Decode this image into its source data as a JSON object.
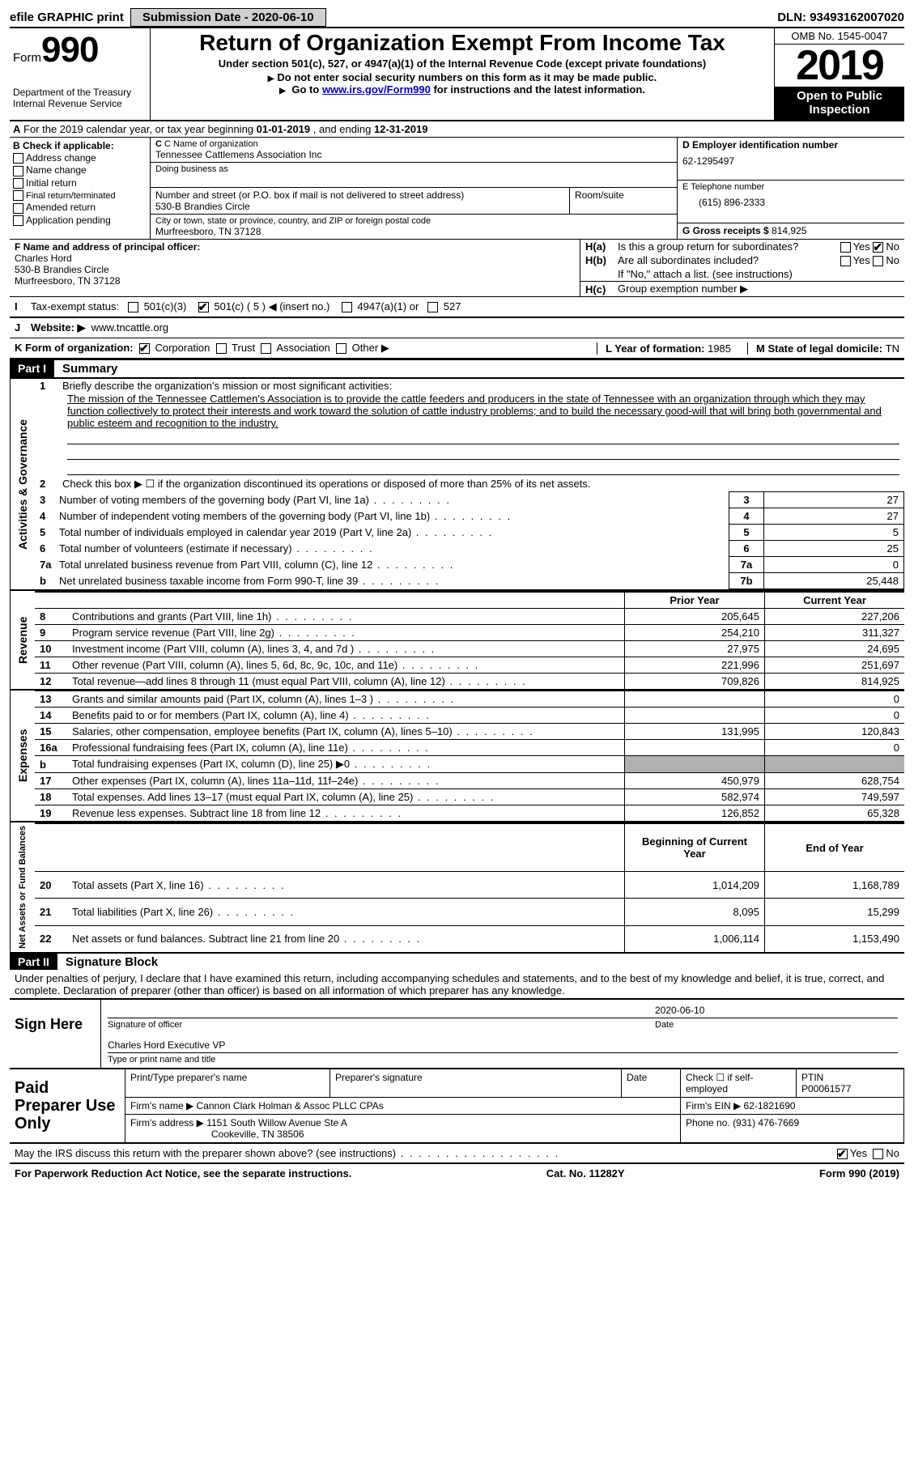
{
  "topbar": {
    "efile_label": "efile GRAPHIC print",
    "submission_label": "Submission Date - 2020-06-10",
    "dln": "DLN: 93493162007020"
  },
  "header": {
    "form_word": "Form",
    "form_number": "990",
    "dept1": "Department of the Treasury",
    "dept2": "Internal Revenue Service",
    "title": "Return of Organization Exempt From Income Tax",
    "subtitle": "Under section 501(c), 527, or 4947(a)(1) of the Internal Revenue Code (except private foundations)",
    "note1": "Do not enter social security numbers on this form as it may be made public.",
    "note2_pre": "Go to ",
    "note2_link": "www.irs.gov/Form990",
    "note2_post": " for instructions and the latest information.",
    "omb": "OMB No. 1545-0047",
    "year": "2019",
    "inspection": "Open to Public Inspection"
  },
  "line_a": {
    "text_pre": "For the 2019 calendar year, or tax year beginning ",
    "begin": "01-01-2019",
    "mid": " , and ending ",
    "end": "12-31-2019"
  },
  "section_b": {
    "header": "B Check if applicable:",
    "opts": [
      "Address change",
      "Name change",
      "Initial return",
      "Final return/terminated",
      "Amended return",
      "Application pending"
    ]
  },
  "section_c": {
    "name_label": "C Name of organization",
    "name": "Tennessee Cattlemens Association Inc",
    "dba_label": "Doing business as",
    "addr_label": "Number and street (or P.O. box if mail is not delivered to street address)",
    "addr": "530-B Brandies Circle",
    "room_label": "Room/suite",
    "city_label": "City or town, state or province, country, and ZIP or foreign postal code",
    "city": "Murfreesboro, TN  37128"
  },
  "section_d": {
    "label": "D Employer identification number",
    "ein": "62-1295497",
    "phone_label": "E Telephone number",
    "phone": "(615) 896-2333",
    "gross_label": "G Gross receipts $ ",
    "gross": "814,925"
  },
  "section_f": {
    "label": "F  Name and address of principal officer:",
    "name": "Charles Hord",
    "addr1": "530-B Brandies Circle",
    "addr2": "Murfreesboro, TN  37128"
  },
  "section_h": {
    "ha": "Is this a group return for subordinates?",
    "hb": "Are all subordinates included?",
    "hb_note": "If \"No,\" attach a list. (see instructions)",
    "hc": "Group exemption number ▶"
  },
  "line_i": {
    "label": "Tax-exempt status:",
    "opt1": "501(c)(3)",
    "opt2_pre": "501(c) ( ",
    "opt2_val": "5",
    "opt2_post": " ) ◀ (insert no.)",
    "opt3": "4947(a)(1) or",
    "opt4": "527"
  },
  "line_j": {
    "label": "Website: ▶",
    "value": "www.tncattle.org"
  },
  "line_k": {
    "label": "K Form of organization:",
    "opts": [
      "Corporation",
      "Trust",
      "Association",
      "Other ▶"
    ],
    "l_label": "L Year of formation: ",
    "l_val": "1985",
    "m_label": "M State of legal domicile: ",
    "m_val": "TN"
  },
  "part1": {
    "tag": "Part I",
    "title": "Summary",
    "vtab_gov": "Activities & Governance",
    "vtab_rev": "Revenue",
    "vtab_exp": "Expenses",
    "vtab_net": "Net Assets or Fund Balances",
    "q1": "Briefly describe the organization's mission or most significant activities:",
    "mission": "The mission of the Tennessee Cattlemen's Association is to provide the cattle feeders and producers in the state of Tennessee with an organization through which they may function collectively to protect their interests and work toward the solution of cattle industry problems; and to build the necessary good-will that will bring both governmental and public esteem and recognition to the industry.",
    "q2": "Check this box ▶ ☐  if the organization discontinued its operations or disposed of more than 25% of its net assets.",
    "rows_gov": [
      {
        "n": "3",
        "t": "Number of voting members of the governing body (Part VI, line 1a)",
        "k": "3",
        "v": "27"
      },
      {
        "n": "4",
        "t": "Number of independent voting members of the governing body (Part VI, line 1b)",
        "k": "4",
        "v": "27"
      },
      {
        "n": "5",
        "t": "Total number of individuals employed in calendar year 2019 (Part V, line 2a)",
        "k": "5",
        "v": "5"
      },
      {
        "n": "6",
        "t": "Total number of volunteers (estimate if necessary)",
        "k": "6",
        "v": "25"
      },
      {
        "n": "7a",
        "t": "Total unrelated business revenue from Part VIII, column (C), line 12",
        "k": "7a",
        "v": "0"
      },
      {
        "n": "b",
        "t": "Net unrelated business taxable income from Form 990-T, line 39",
        "k": "7b",
        "v": "25,448"
      }
    ],
    "col_prior": "Prior Year",
    "col_current": "Current Year",
    "rows_rev": [
      {
        "n": "8",
        "t": "Contributions and grants (Part VIII, line 1h)",
        "p": "205,645",
        "c": "227,206"
      },
      {
        "n": "9",
        "t": "Program service revenue (Part VIII, line 2g)",
        "p": "254,210",
        "c": "311,327"
      },
      {
        "n": "10",
        "t": "Investment income (Part VIII, column (A), lines 3, 4, and 7d )",
        "p": "27,975",
        "c": "24,695"
      },
      {
        "n": "11",
        "t": "Other revenue (Part VIII, column (A), lines 5, 6d, 8c, 9c, 10c, and 11e)",
        "p": "221,996",
        "c": "251,697"
      },
      {
        "n": "12",
        "t": "Total revenue—add lines 8 through 11 (must equal Part VIII, column (A), line 12)",
        "p": "709,826",
        "c": "814,925"
      }
    ],
    "rows_exp": [
      {
        "n": "13",
        "t": "Grants and similar amounts paid (Part IX, column (A), lines 1–3 )",
        "p": "",
        "c": "0"
      },
      {
        "n": "14",
        "t": "Benefits paid to or for members (Part IX, column (A), line 4)",
        "p": "",
        "c": "0"
      },
      {
        "n": "15",
        "t": "Salaries, other compensation, employee benefits (Part IX, column (A), lines 5–10)",
        "p": "131,995",
        "c": "120,843"
      },
      {
        "n": "16a",
        "t": "Professional fundraising fees (Part IX, column (A), line 11e)",
        "p": "",
        "c": "0"
      },
      {
        "n": "b",
        "t": "Total fundraising expenses (Part IX, column (D), line 25) ▶0",
        "p": "shade",
        "c": "shade"
      },
      {
        "n": "17",
        "t": "Other expenses (Part IX, column (A), lines 11a–11d, 11f–24e)",
        "p": "450,979",
        "c": "628,754"
      },
      {
        "n": "18",
        "t": "Total expenses. Add lines 13–17 (must equal Part IX, column (A), line 25)",
        "p": "582,974",
        "c": "749,597"
      },
      {
        "n": "19",
        "t": "Revenue less expenses. Subtract line 18 from line 12",
        "p": "126,852",
        "c": "65,328"
      }
    ],
    "col_boy": "Beginning of Current Year",
    "col_eoy": "End of Year",
    "rows_net": [
      {
        "n": "20",
        "t": "Total assets (Part X, line 16)",
        "p": "1,014,209",
        "c": "1,168,789"
      },
      {
        "n": "21",
        "t": "Total liabilities (Part X, line 26)",
        "p": "8,095",
        "c": "15,299"
      },
      {
        "n": "22",
        "t": "Net assets or fund balances. Subtract line 21 from line 20",
        "p": "1,006,114",
        "c": "1,153,490"
      }
    ]
  },
  "part2": {
    "tag": "Part II",
    "title": "Signature Block",
    "perjury": "Under penalties of perjury, I declare that I have examined this return, including accompanying schedules and statements, and to the best of my knowledge and belief, it is true, correct, and complete. Declaration of preparer (other than officer) is based on all information of which preparer has any knowledge.",
    "sign_here": "Sign Here",
    "sig_officer": "Signature of officer",
    "sig_date_val": "2020-06-10",
    "sig_date": "Date",
    "officer_name": "Charles Hord Executive VP",
    "officer_caption": "Type or print name and title",
    "paid_label": "Paid Preparer Use Only",
    "prep_name_label": "Print/Type preparer's name",
    "prep_sig_label": "Preparer's signature",
    "date_label": "Date",
    "self_emp": "Check ☐ if self-employed",
    "ptin_label": "PTIN",
    "ptin": "P00061577",
    "firm_name_label": "Firm's name    ▶ ",
    "firm_name": "Cannon Clark Holman & Assoc PLLC CPAs",
    "firm_ein_label": "Firm's EIN ▶ ",
    "firm_ein": "62-1821690",
    "firm_addr_label": "Firm's address ▶ ",
    "firm_addr1": "1151 South Willow Avenue Ste A",
    "firm_addr2": "Cookeville, TN  38506",
    "firm_phone_label": "Phone no. ",
    "firm_phone": "(931) 476-7669",
    "discuss": "May the IRS discuss this return with the preparer shown above? (see instructions)",
    "paperwork": "For Paperwork Reduction Act Notice, see the separate instructions.",
    "cat": "Cat. No. 11282Y",
    "formfoot": "Form 990 (2019)"
  },
  "yn": {
    "yes": "Yes",
    "no": "No"
  }
}
